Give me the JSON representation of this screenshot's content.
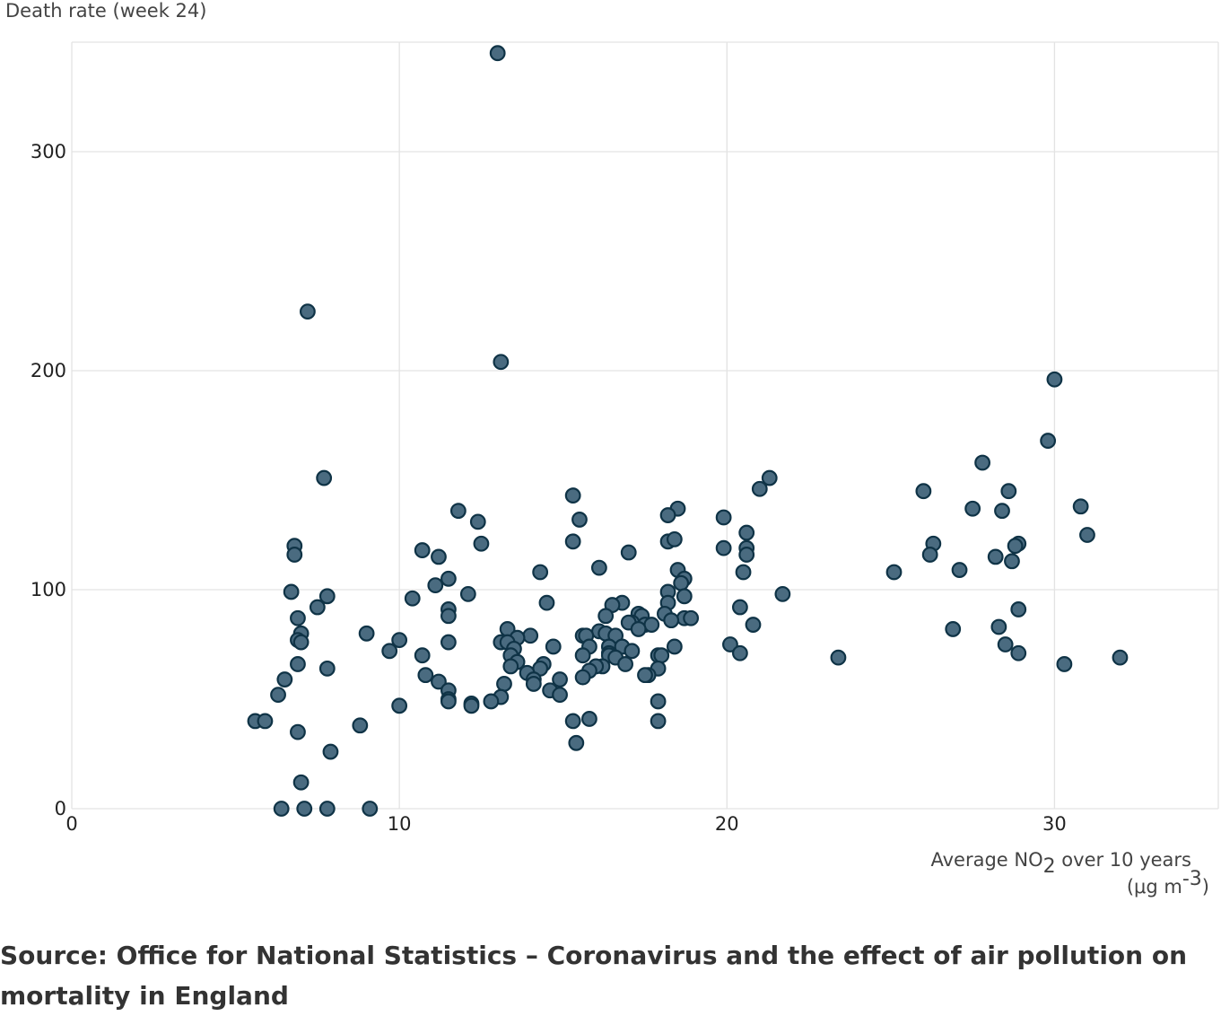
{
  "chart_data": {
    "type": "scatter",
    "ylabel": "Death rate (week 24)",
    "xlabel_parts": {
      "pre": "Average NO",
      "sub": "2",
      "post": " over 10 years",
      "unit_pre": "(μg m",
      "unit_sup": "-3",
      "unit_post": ")"
    },
    "xlim": [
      0,
      35
    ],
    "ylim": [
      0,
      350
    ],
    "x_ticks": [
      0,
      10,
      20,
      30
    ],
    "y_ticks": [
      0,
      100,
      200,
      300
    ],
    "grid": true,
    "points": [
      [
        13.0,
        345
      ],
      [
        7.2,
        227
      ],
      [
        13.1,
        204
      ],
      [
        30.0,
        196
      ],
      [
        29.8,
        168
      ],
      [
        27.8,
        158
      ],
      [
        21.3,
        151
      ],
      [
        7.7,
        151
      ],
      [
        21.0,
        146
      ],
      [
        26.0,
        145
      ],
      [
        28.6,
        145
      ],
      [
        15.3,
        143
      ],
      [
        30.8,
        138
      ],
      [
        27.5,
        137
      ],
      [
        28.4,
        136
      ],
      [
        11.8,
        136
      ],
      [
        18.5,
        137
      ],
      [
        18.2,
        134
      ],
      [
        19.9,
        133
      ],
      [
        15.5,
        132
      ],
      [
        12.4,
        131
      ],
      [
        20.6,
        126
      ],
      [
        31.0,
        125
      ],
      [
        18.2,
        122
      ],
      [
        18.4,
        123
      ],
      [
        15.3,
        122
      ],
      [
        12.5,
        121
      ],
      [
        26.3,
        121
      ],
      [
        28.9,
        121
      ],
      [
        28.8,
        120
      ],
      [
        6.8,
        120
      ],
      [
        10.7,
        118
      ],
      [
        19.9,
        119
      ],
      [
        20.6,
        119
      ],
      [
        17.0,
        117
      ],
      [
        6.8,
        116
      ],
      [
        11.2,
        115
      ],
      [
        20.6,
        116
      ],
      [
        26.2,
        116
      ],
      [
        28.2,
        115
      ],
      [
        28.7,
        113
      ],
      [
        16.1,
        110
      ],
      [
        18.5,
        109
      ],
      [
        27.1,
        109
      ],
      [
        20.5,
        108
      ],
      [
        25.1,
        108
      ],
      [
        14.3,
        108
      ],
      [
        11.5,
        105
      ],
      [
        18.7,
        105
      ],
      [
        18.6,
        103
      ],
      [
        11.1,
        102
      ],
      [
        6.7,
        99
      ],
      [
        18.2,
        99
      ],
      [
        12.1,
        98
      ],
      [
        7.8,
        97
      ],
      [
        18.7,
        97
      ],
      [
        10.4,
        96
      ],
      [
        14.5,
        94
      ],
      [
        18.2,
        94
      ],
      [
        16.8,
        94
      ],
      [
        16.5,
        93
      ],
      [
        7.5,
        92
      ],
      [
        20.4,
        92
      ],
      [
        21.7,
        98
      ],
      [
        11.5,
        91
      ],
      [
        28.9,
        91
      ],
      [
        17.3,
        89
      ],
      [
        18.1,
        89
      ],
      [
        17.4,
        88
      ],
      [
        16.3,
        88
      ],
      [
        6.9,
        87
      ],
      [
        11.5,
        88
      ],
      [
        18.7,
        87
      ],
      [
        18.9,
        87
      ],
      [
        17.1,
        85
      ],
      [
        18.3,
        86
      ],
      [
        20.8,
        84
      ],
      [
        17.0,
        85
      ],
      [
        17.5,
        84
      ],
      [
        17.7,
        84
      ],
      [
        28.3,
        83
      ],
      [
        26.9,
        82
      ],
      [
        17.3,
        82
      ],
      [
        13.3,
        82
      ],
      [
        16.1,
        81
      ],
      [
        9.0,
        80
      ],
      [
        7.0,
        80
      ],
      [
        16.3,
        80
      ],
      [
        16.6,
        79
      ],
      [
        15.6,
        79
      ],
      [
        15.7,
        79
      ],
      [
        14.0,
        79
      ],
      [
        13.6,
        78
      ],
      [
        6.9,
        77
      ],
      [
        10.0,
        77
      ],
      [
        11.5,
        76
      ],
      [
        13.1,
        76
      ],
      [
        7.0,
        76
      ],
      [
        13.3,
        76
      ],
      [
        15.8,
        74
      ],
      [
        14.7,
        74
      ],
      [
        16.4,
        74
      ],
      [
        16.8,
        74
      ],
      [
        18.4,
        74
      ],
      [
        20.1,
        75
      ],
      [
        28.5,
        75
      ],
      [
        13.5,
        73
      ],
      [
        9.7,
        72
      ],
      [
        17.1,
        72
      ],
      [
        16.4,
        71
      ],
      [
        20.4,
        71
      ],
      [
        13.4,
        70
      ],
      [
        10.7,
        70
      ],
      [
        15.6,
        70
      ],
      [
        16.4,
        70
      ],
      [
        17.9,
        70
      ],
      [
        18.0,
        70
      ],
      [
        16.6,
        69
      ],
      [
        23.4,
        69
      ],
      [
        28.9,
        71
      ],
      [
        32.0,
        69
      ],
      [
        13.6,
        67
      ],
      [
        16.9,
        66
      ],
      [
        14.4,
        66
      ],
      [
        6.9,
        66
      ],
      [
        13.4,
        65
      ],
      [
        16.2,
        65
      ],
      [
        16.0,
        65
      ],
      [
        14.3,
        64
      ],
      [
        7.8,
        64
      ],
      [
        17.9,
        64
      ],
      [
        15.8,
        63
      ],
      [
        30.3,
        66
      ],
      [
        13.9,
        62
      ],
      [
        17.6,
        61
      ],
      [
        17.5,
        61
      ],
      [
        10.8,
        61
      ],
      [
        15.6,
        60
      ],
      [
        14.1,
        59
      ],
      [
        6.5,
        59
      ],
      [
        11.2,
        58
      ],
      [
        14.9,
        59
      ],
      [
        14.1,
        57
      ],
      [
        13.2,
        57
      ],
      [
        11.5,
        54
      ],
      [
        14.6,
        54
      ],
      [
        6.3,
        52
      ],
      [
        14.9,
        52
      ],
      [
        13.1,
        51
      ],
      [
        11.5,
        50
      ],
      [
        11.5,
        49
      ],
      [
        12.2,
        48
      ],
      [
        12.8,
        49
      ],
      [
        12.2,
        47
      ],
      [
        17.9,
        49
      ],
      [
        10.0,
        47
      ],
      [
        15.8,
        41
      ],
      [
        15.3,
        40
      ],
      [
        17.9,
        40
      ],
      [
        5.6,
        40
      ],
      [
        5.9,
        40
      ],
      [
        8.8,
        38
      ],
      [
        6.9,
        35
      ],
      [
        15.4,
        30
      ],
      [
        7.9,
        26
      ],
      [
        7.0,
        12
      ],
      [
        6.4,
        0
      ],
      [
        7.1,
        0
      ],
      [
        7.8,
        0
      ],
      [
        9.1,
        0
      ]
    ]
  },
  "source": "Source: Office for National Statistics – Coronavirus and the effect of air pollution on mortality in England"
}
